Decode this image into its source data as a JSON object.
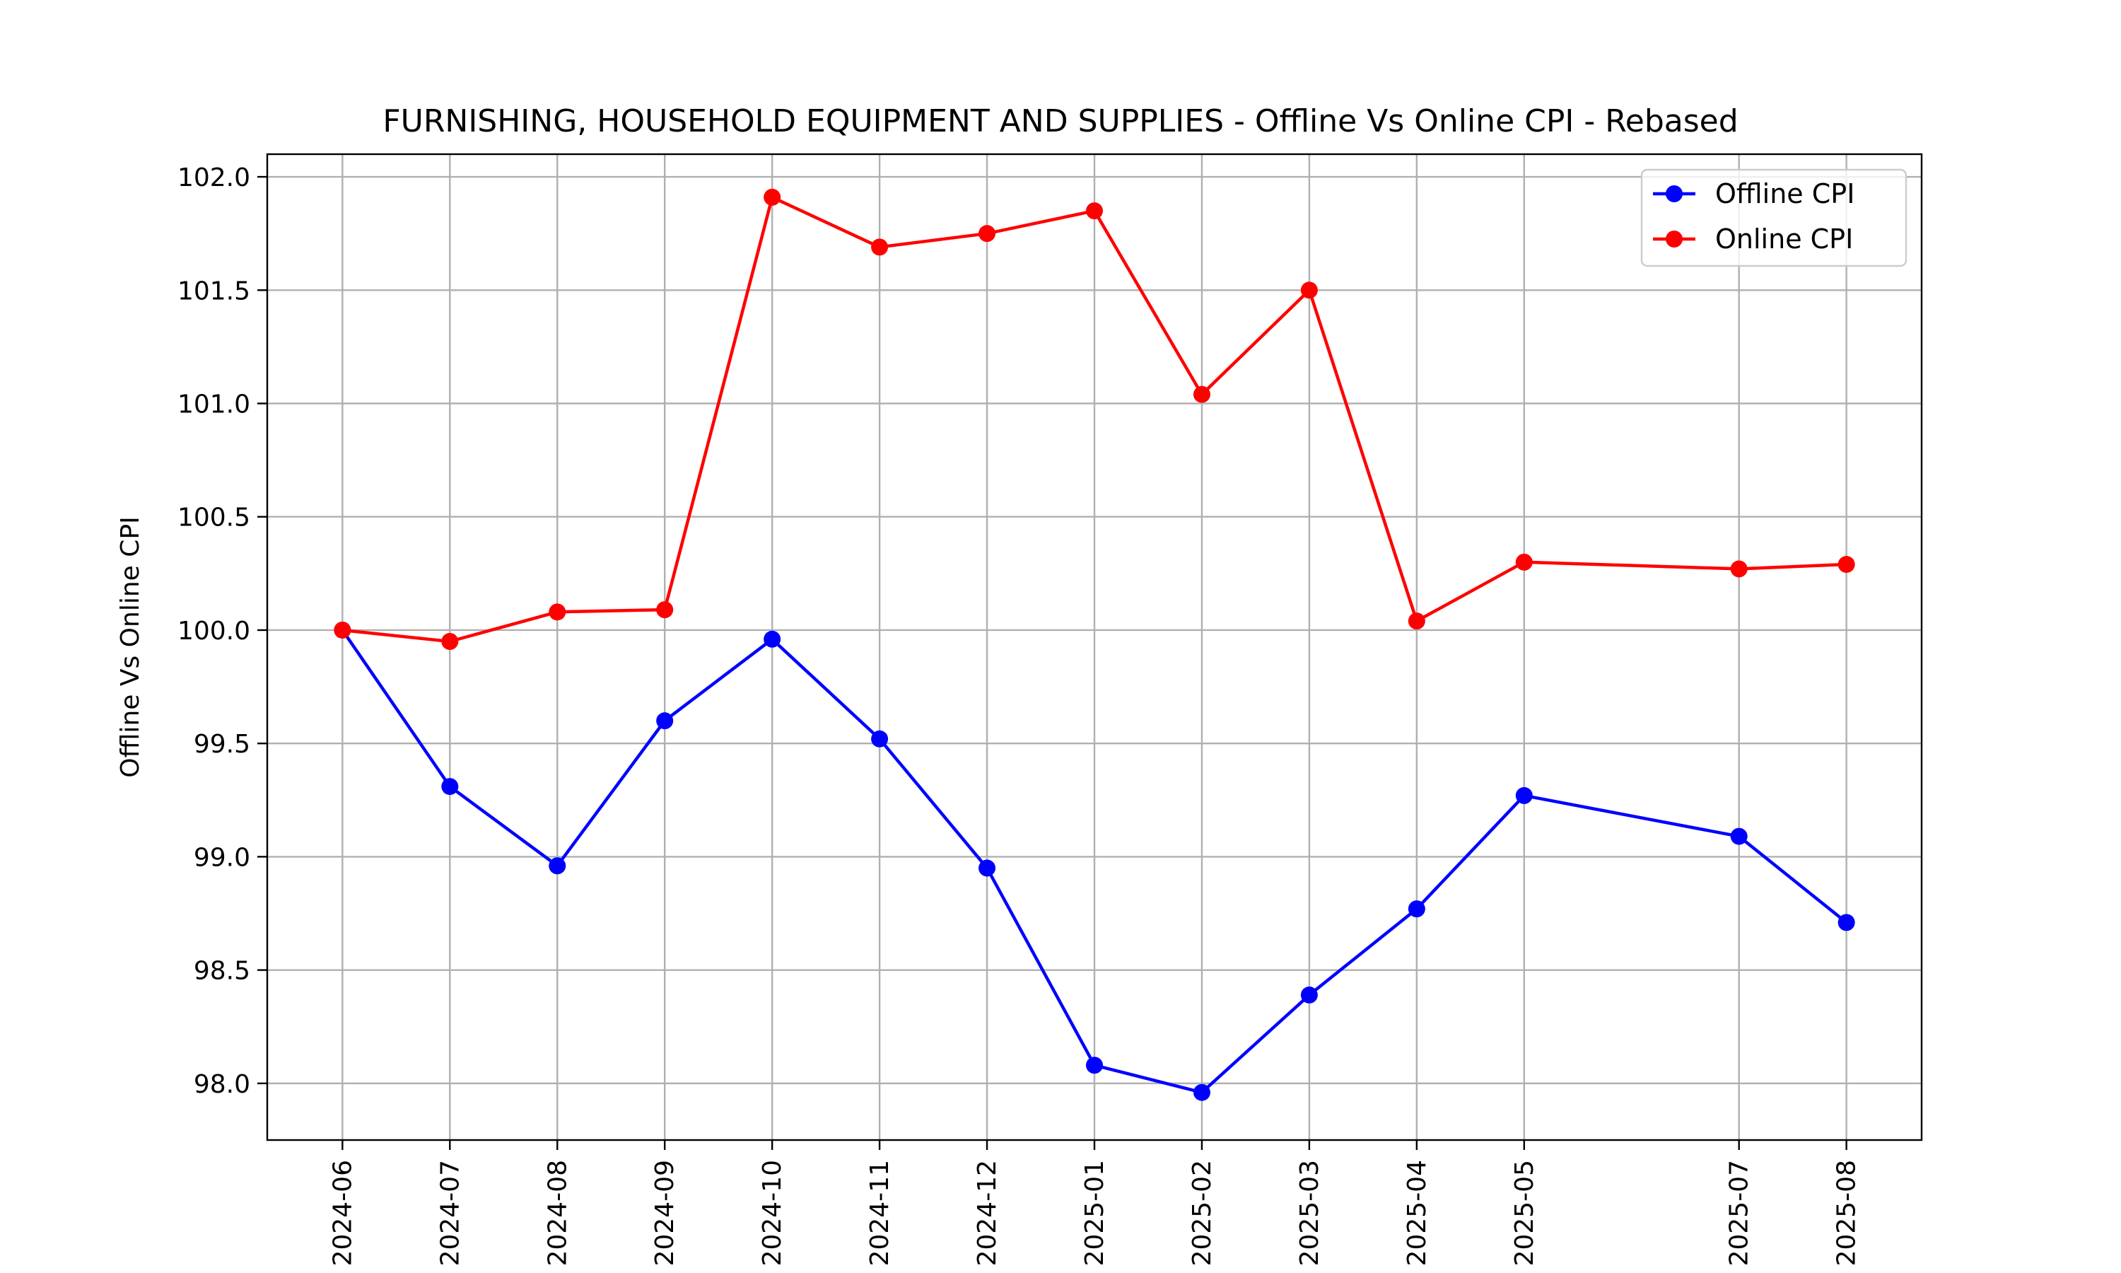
{
  "chart_data": {
    "type": "line",
    "title": "FURNISHING, HOUSEHOLD EQUIPMENT AND SUPPLIES - Offline Vs Online CPI - Rebased",
    "xlabel": "",
    "ylabel": "Offline Vs Online CPI",
    "x": [
      "2024-06",
      "2024-07",
      "2024-08",
      "2024-09",
      "2024-10",
      "2024-11",
      "2024-12",
      "2025-01",
      "2025-02",
      "2025-03",
      "2025-04",
      "2025-05",
      "2025-07",
      "2025-08"
    ],
    "ylim": [
      97.75,
      102.1
    ],
    "yticks": [
      "98.0",
      "98.5",
      "99.0",
      "99.5",
      "100.0",
      "100.5",
      "101.0",
      "101.5",
      "102.0"
    ],
    "grid": true,
    "legend_position": "top-right",
    "series": [
      {
        "name": "Offline CPI",
        "color": "#0000ff",
        "values": [
          100.0,
          99.31,
          98.96,
          99.6,
          99.96,
          99.52,
          98.95,
          98.08,
          97.96,
          98.39,
          98.77,
          99.27,
          99.09,
          98.71
        ]
      },
      {
        "name": "Online CPI",
        "color": "#ff0000",
        "values": [
          100.0,
          99.95,
          100.08,
          100.09,
          101.91,
          101.69,
          101.75,
          101.85,
          101.04,
          101.5,
          100.04,
          100.3,
          100.27,
          100.29
        ]
      }
    ]
  }
}
